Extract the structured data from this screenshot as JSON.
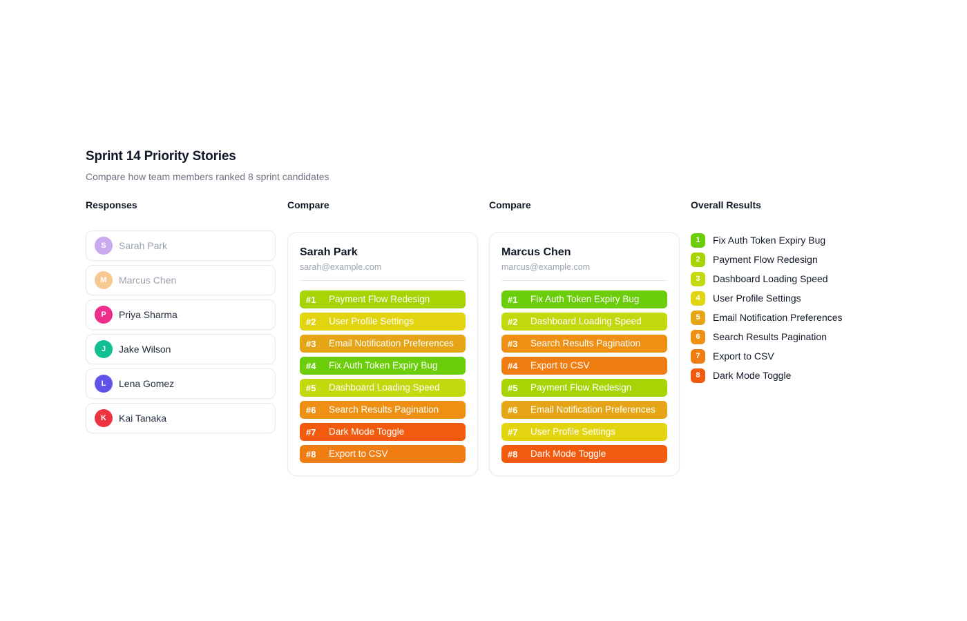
{
  "page": {
    "title": "Sprint 14 Priority Stories",
    "subtitle": "Compare how team members ranked 8 sprint candidates"
  },
  "responses": {
    "header": "Responses",
    "members": [
      {
        "initial": "S",
        "name": "Sarah Park",
        "avatar_color": "#cba9ef",
        "muted": true
      },
      {
        "initial": "M",
        "name": "Marcus Chen",
        "avatar_color": "#f8c893",
        "muted": true
      },
      {
        "initial": "P",
        "name": "Priya Sharma",
        "avatar_color": "#ee2d8d",
        "muted": false
      },
      {
        "initial": "J",
        "name": "Jake Wilson",
        "avatar_color": "#10bf92",
        "muted": false
      },
      {
        "initial": "L",
        "name": "Lena Gomez",
        "avatar_color": "#6152e9",
        "muted": false
      },
      {
        "initial": "K",
        "name": "Kai Tanaka",
        "avatar_color": "#ee3340",
        "muted": false
      }
    ]
  },
  "compare_cards": [
    {
      "header": "Compare",
      "name": "Sarah Park",
      "email": "sarah@example.com",
      "rankings": [
        {
          "rank": "#1",
          "label": "Payment Flow Redesign",
          "color": "#a6d405"
        },
        {
          "rank": "#2",
          "label": "User Profile Settings",
          "color": "#e2d40f"
        },
        {
          "rank": "#3",
          "label": "Email Notification Preferences",
          "color": "#e6a517"
        },
        {
          "rank": "#4",
          "label": "Fix Auth Token Expiry Bug",
          "color": "#6cce0a"
        },
        {
          "rank": "#5",
          "label": "Dashboard Loading Speed",
          "color": "#c3d90d"
        },
        {
          "rank": "#6",
          "label": "Search Results Pagination",
          "color": "#ed9013"
        },
        {
          "rank": "#7",
          "label": "Dark Mode Toggle",
          "color": "#f25a0e"
        },
        {
          "rank": "#8",
          "label": "Export to CSV",
          "color": "#f07d12"
        }
      ]
    },
    {
      "header": "Compare",
      "name": "Marcus Chen",
      "email": "marcus@example.com",
      "rankings": [
        {
          "rank": "#1",
          "label": "Fix Auth Token Expiry Bug",
          "color": "#6cce0a"
        },
        {
          "rank": "#2",
          "label": "Dashboard Loading Speed",
          "color": "#c3d90d"
        },
        {
          "rank": "#3",
          "label": "Search Results Pagination",
          "color": "#ed9013"
        },
        {
          "rank": "#4",
          "label": "Export to CSV",
          "color": "#f07d12"
        },
        {
          "rank": "#5",
          "label": "Payment Flow Redesign",
          "color": "#a6d405"
        },
        {
          "rank": "#6",
          "label": "Email Notification Preferences",
          "color": "#e6a517"
        },
        {
          "rank": "#7",
          "label": "User Profile Settings",
          "color": "#e2d40f"
        },
        {
          "rank": "#8",
          "label": "Dark Mode Toggle",
          "color": "#f25a0e"
        }
      ]
    }
  ],
  "overall": {
    "header": "Overall Results",
    "items": [
      {
        "rank": "1",
        "label": "Fix Auth Token Expiry Bug",
        "color": "#6cce0a"
      },
      {
        "rank": "2",
        "label": "Payment Flow Redesign",
        "color": "#a6d405"
      },
      {
        "rank": "3",
        "label": "Dashboard Loading Speed",
        "color": "#c3d90d"
      },
      {
        "rank": "4",
        "label": "User Profile Settings",
        "color": "#e2d40f"
      },
      {
        "rank": "5",
        "label": "Email Notification Preferences",
        "color": "#e6a517"
      },
      {
        "rank": "6",
        "label": "Search Results Pagination",
        "color": "#ed9013"
      },
      {
        "rank": "7",
        "label": "Export to CSV",
        "color": "#f07d12"
      },
      {
        "rank": "8",
        "label": "Dark Mode Toggle",
        "color": "#f25a0e"
      }
    ]
  }
}
